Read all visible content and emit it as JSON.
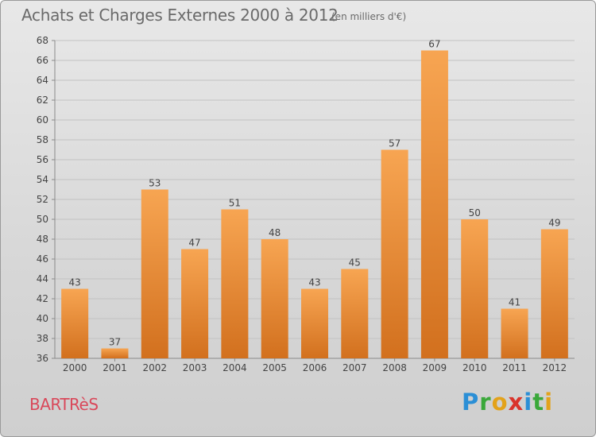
{
  "header": {
    "title": "Achats et Charges Externes 2000 à 2012",
    "subtitle": "(en milliers d'€)"
  },
  "footer": {
    "commune": "BARTRèS",
    "logo_letters": [
      "P",
      "r",
      "o",
      "x",
      "i",
      "t",
      "i"
    ],
    "logo_colors": [
      "#2b8fd6",
      "#3aa83a",
      "#e3a21a",
      "#d9342b",
      "#2b8fd6",
      "#3aa83a",
      "#e3a21a"
    ]
  },
  "chart_data": {
    "type": "bar",
    "categories": [
      "2000",
      "2001",
      "2002",
      "2003",
      "2004",
      "2005",
      "2006",
      "2007",
      "2008",
      "2009",
      "2010",
      "2011",
      "2012"
    ],
    "values": [
      43,
      37,
      53,
      47,
      51,
      48,
      43,
      45,
      57,
      67,
      50,
      41,
      49
    ],
    "title": "Achats et Charges Externes 2000 à 2012",
    "subtitle": "(en milliers d'€)",
    "ylim": [
      36,
      68
    ],
    "yticks": [
      36,
      38,
      40,
      42,
      44,
      46,
      48,
      50,
      52,
      54,
      56,
      58,
      60,
      62,
      64,
      66,
      68
    ],
    "grid": true,
    "bar_color_top": "#f7a552",
    "bar_color_bottom": "#d2701e"
  }
}
